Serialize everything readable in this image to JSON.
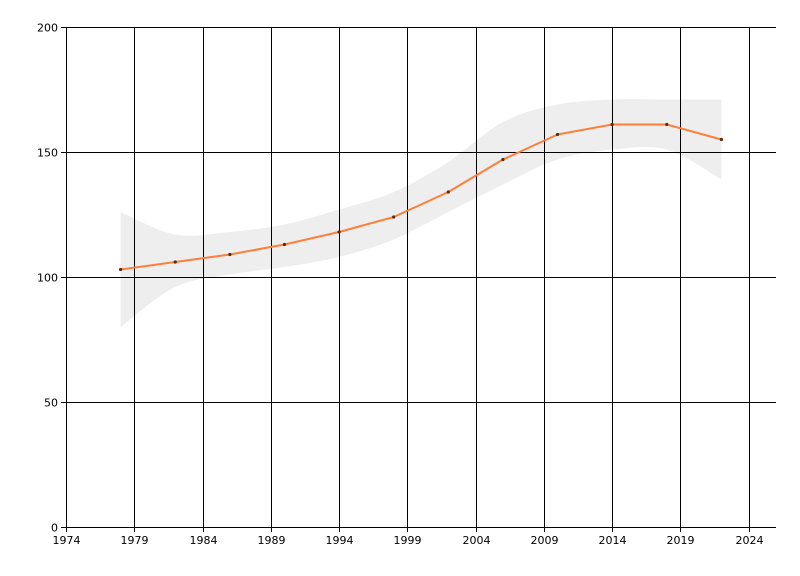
{
  "chart_data": {
    "type": "line",
    "title": "",
    "xlabel": "",
    "ylabel": "",
    "xlim": [
      1974,
      2026
    ],
    "ylim": [
      0,
      200
    ],
    "x_ticks": [
      1974,
      1979,
      1984,
      1989,
      1994,
      1999,
      2004,
      2009,
      2014,
      2019,
      2024
    ],
    "y_ticks": [
      0,
      50,
      100,
      150,
      200
    ],
    "grid": true,
    "legend": "none",
    "series": [
      {
        "x": [
          1978,
          1982,
          1986,
          1990,
          1994,
          1998,
          2002,
          2006,
          2010,
          2014,
          2018,
          2022
        ],
        "values": [
          103,
          106,
          109,
          113,
          118,
          124,
          134,
          147,
          157,
          161,
          161,
          155
        ],
        "band_upper": [
          126,
          117,
          118,
          121,
          127,
          134,
          146,
          162,
          169,
          171,
          171,
          171
        ],
        "band_lower": [
          80,
          96,
          101,
          104,
          108,
          115,
          126,
          137,
          147,
          151,
          151,
          139
        ],
        "color": "#ff7f3a",
        "band_color": "#eeeeee"
      }
    ]
  }
}
